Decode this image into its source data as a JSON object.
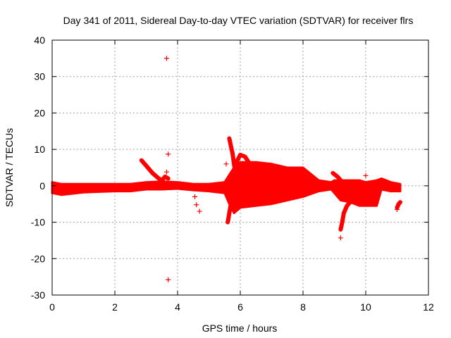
{
  "chart_data": {
    "type": "scatter",
    "title": "Day 341 of 2011, Sidereal Day-to-day VTEC variation (SDTVAR) for receiver flrs",
    "xlabel": "GPS time / hours",
    "ylabel": "SDTVAR / TECUs",
    "xlim": [
      0,
      12
    ],
    "ylim": [
      -30,
      40
    ],
    "xticks": [
      0,
      2,
      4,
      6,
      8,
      10,
      12
    ],
    "yticks": [
      -30,
      -20,
      -10,
      0,
      10,
      20,
      30,
      40
    ],
    "xtick_labels": [
      "0",
      "2",
      "4",
      "6",
      "8",
      "10",
      "12"
    ],
    "ytick_labels": [
      "-30",
      "-20",
      "-10",
      "0",
      "10",
      "20",
      "30",
      "40"
    ],
    "grid": true,
    "marker": "+",
    "color": "#ff0000",
    "band_envelope": {
      "description": "dense red point cloud, approximate min/max per time",
      "x": [
        0.0,
        0.3,
        1.0,
        2.0,
        2.5,
        3.0,
        3.5,
        4.0,
        4.5,
        5.0,
        5.5,
        5.65,
        5.8,
        6.0,
        6.5,
        7.0,
        7.5,
        8.0,
        8.5,
        8.9,
        9.0,
        9.2,
        9.5,
        9.8,
        10.0,
        10.35,
        10.5,
        10.8,
        11.1
      ],
      "ymin": [
        -2.0,
        -2.5,
        -1.8,
        -1.5,
        -1.5,
        -1.0,
        -1.0,
        -0.8,
        -1.2,
        -1.5,
        -2.0,
        -5.0,
        -7.5,
        -6.0,
        -5.5,
        -5.0,
        -4.0,
        -3.0,
        -1.5,
        -1.0,
        -2.0,
        -4.0,
        -4.5,
        -5.5,
        -5.5,
        -5.5,
        -1.0,
        -1.5,
        -1.5
      ],
      "ymax": [
        1.0,
        0.5,
        0.5,
        0.5,
        0.5,
        1.0,
        1.2,
        1.0,
        0.5,
        0.5,
        1.0,
        3.0,
        5.0,
        6.5,
        6.5,
        6.0,
        5.0,
        5.0,
        1.5,
        1.0,
        1.5,
        1.5,
        1.5,
        1.5,
        1.0,
        1.5,
        2.0,
        1.0,
        0.5
      ]
    },
    "arcs": [
      {
        "x": [
          2.85,
          3.0,
          3.2,
          3.4,
          3.5
        ],
        "y": [
          7.0,
          5.5,
          3.5,
          2.0,
          1.5
        ]
      },
      {
        "x": [
          3.5,
          3.6,
          3.7
        ],
        "y": [
          1.5,
          2.5,
          2.0
        ]
      },
      {
        "x": [
          5.65,
          5.7,
          5.75,
          5.8,
          5.85
        ],
        "y": [
          13.0,
          11.0,
          9.0,
          6.0,
          3.0
        ]
      },
      {
        "x": [
          5.6,
          5.65,
          5.7,
          5.8
        ],
        "y": [
          -10.0,
          -7.5,
          -5.0,
          -3.0
        ]
      },
      {
        "x": [
          5.85,
          6.0,
          6.15,
          6.3
        ],
        "y": [
          6.0,
          8.5,
          8.0,
          6.0
        ]
      },
      {
        "x": [
          9.2,
          9.25,
          9.3,
          9.4,
          9.5
        ],
        "y": [
          -12.0,
          -10.0,
          -7.5,
          -5.5,
          -4.5
        ]
      },
      {
        "x": [
          8.95,
          9.1,
          9.2,
          9.3
        ],
        "y": [
          3.5,
          2.5,
          1.5,
          0.5
        ]
      },
      {
        "x": [
          11.0,
          11.05,
          11.1
        ],
        "y": [
          -6.0,
          -5.0,
          -4.5
        ]
      }
    ],
    "outliers": {
      "x": [
        3.65,
        3.7,
        3.65,
        3.7,
        4.6,
        4.7,
        4.55,
        5.55,
        9.2,
        10.0,
        11.0
      ],
      "y": [
        35.0,
        -25.8,
        3.8,
        8.7,
        -5.2,
        -7.0,
        -3.0,
        6.0,
        -14.3,
        2.8,
        -6.5
      ]
    }
  }
}
